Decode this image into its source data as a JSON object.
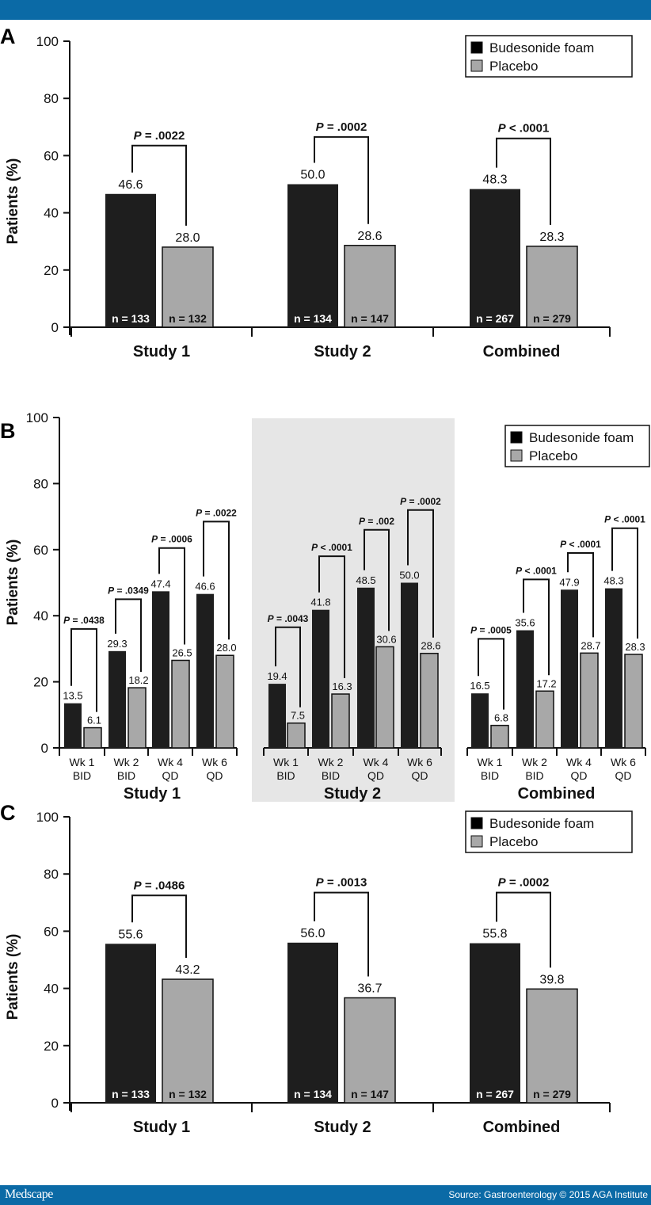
{
  "header": {},
  "footer": {
    "brand": "Medscape",
    "source": "Source: Gastroenterology © 2015 AGA Institute"
  },
  "colors": {
    "budesonide": "#1e1e1e",
    "placebo": "#a8a8a8",
    "highlight_band": "#e6e6e6",
    "bar_brand": "#0b6aa6"
  },
  "chart_data": [
    {
      "panel": "A",
      "type": "bar",
      "ylabel": "Patients (%)",
      "ylim": [
        0,
        100
      ],
      "yticks": [
        0,
        20,
        40,
        60,
        80,
        100
      ],
      "legend": {
        "position": "top-right",
        "entries": [
          "Budesonide foam",
          "Placebo"
        ]
      },
      "categories": [
        "Study 1",
        "Study 2",
        "Combined"
      ],
      "series": [
        {
          "name": "Budesonide foam",
          "values": [
            46.6,
            50.0,
            48.3
          ],
          "labels": [
            "46.6",
            "50.0",
            "48.3"
          ],
          "n": [
            "n = 133",
            "n = 134",
            "n = 267"
          ]
        },
        {
          "name": "Placebo",
          "values": [
            28.0,
            28.6,
            28.3
          ],
          "labels": [
            "28.0",
            "28.6",
            "28.3"
          ],
          "n": [
            "n = 132",
            "n = 147",
            "n = 279"
          ]
        }
      ],
      "pvalues": [
        {
          "prefix": "P",
          "text": " = .0022",
          "bracket_top": 63.5
        },
        {
          "prefix": "P",
          "text": " = .0002",
          "bracket_top": 66.5
        },
        {
          "prefix": "P",
          "text": " < .0001",
          "bracket_top": 66.0
        }
      ]
    },
    {
      "panel": "B",
      "type": "bar",
      "ylabel": "Patients (%)",
      "ylim": [
        0,
        100
      ],
      "yticks": [
        0,
        20,
        40,
        60,
        80,
        100
      ],
      "legend": {
        "position": "top-right",
        "entries": [
          "Budesonide foam",
          "Placebo"
        ]
      },
      "groups": [
        {
          "name": "Study 1",
          "highlighted": false,
          "categories": [
            [
              "Wk 1",
              "BID"
            ],
            [
              "Wk 2",
              "BID"
            ],
            [
              "Wk 4",
              "QD"
            ],
            [
              "Wk 6",
              "QD"
            ]
          ],
          "budesonide": [
            13.5,
            29.3,
            47.4,
            46.6
          ],
          "budesonide_labels": [
            "13.5",
            "29.3",
            "47.4",
            "46.6"
          ],
          "placebo": [
            6.1,
            18.2,
            26.5,
            28.0
          ],
          "placebo_labels": [
            "6.1",
            "18.2",
            "26.5",
            "28.0"
          ],
          "pvalues": [
            {
              "prefix": "P",
              "text": " = .0438",
              "bracket_top": 36.0
            },
            {
              "prefix": "P",
              "text": " = .0349",
              "bracket_top": 45.0
            },
            {
              "prefix": "P",
              "text": " = .0006",
              "bracket_top": 60.5
            },
            {
              "prefix": "P",
              "text": " = .0022",
              "bracket_top": 68.5
            }
          ]
        },
        {
          "name": "Study 2",
          "highlighted": true,
          "categories": [
            [
              "Wk 1",
              "BID"
            ],
            [
              "Wk 2",
              "BID"
            ],
            [
              "Wk 4",
              "QD"
            ],
            [
              "Wk 6",
              "QD"
            ]
          ],
          "budesonide": [
            19.4,
            41.8,
            48.5,
            50.0
          ],
          "budesonide_labels": [
            "19.4",
            "41.8",
            "48.5",
            "50.0"
          ],
          "placebo": [
            7.5,
            16.3,
            30.6,
            28.6
          ],
          "placebo_labels": [
            "7.5",
            "16.3",
            "30.6",
            "28.6"
          ],
          "pvalues": [
            {
              "prefix": "P",
              "text": " = .0043",
              "bracket_top": 36.5
            },
            {
              "prefix": "P",
              "text": " < .0001",
              "bracket_top": 58.0
            },
            {
              "prefix": "P",
              "text": " = .002",
              "bracket_top": 66.0
            },
            {
              "prefix": "P",
              "text": " = .0002",
              "bracket_top": 72.0
            }
          ]
        },
        {
          "name": "Combined",
          "highlighted": false,
          "categories": [
            [
              "Wk 1",
              "BID"
            ],
            [
              "Wk 2",
              "BID"
            ],
            [
              "Wk 4",
              "QD"
            ],
            [
              "Wk 6",
              "QD"
            ]
          ],
          "budesonide": [
            16.5,
            35.6,
            47.9,
            48.3
          ],
          "budesonide_labels": [
            "16.5",
            "35.6",
            "47.9",
            "48.3"
          ],
          "placebo": [
            6.8,
            17.2,
            28.7,
            28.3
          ],
          "placebo_labels": [
            "6.8",
            "17.2",
            "28.7",
            "28.3"
          ],
          "pvalues": [
            {
              "prefix": "P",
              "text": " = .0005",
              "bracket_top": 33.0
            },
            {
              "prefix": "P",
              "text": " < .0001",
              "bracket_top": 51.0
            },
            {
              "prefix": "P",
              "text": " < .0001",
              "bracket_top": 59.0
            },
            {
              "prefix": "P",
              "text": " < .0001",
              "bracket_top": 66.5
            }
          ]
        }
      ]
    },
    {
      "panel": "C",
      "type": "bar",
      "ylabel": "Patients (%)",
      "ylim": [
        0,
        100
      ],
      "yticks": [
        0,
        20,
        40,
        60,
        80,
        100
      ],
      "legend": {
        "position": "top-right",
        "entries": [
          "Budesonide foam",
          "Placebo"
        ]
      },
      "categories": [
        "Study 1",
        "Study 2",
        "Combined"
      ],
      "series": [
        {
          "name": "Budesonide foam",
          "values": [
            55.6,
            56.0,
            55.8
          ],
          "labels": [
            "55.6",
            "56.0",
            "55.8"
          ],
          "n": [
            "n = 133",
            "n = 134",
            "n = 267"
          ]
        },
        {
          "name": "Placebo",
          "values": [
            43.2,
            36.7,
            39.8
          ],
          "labels": [
            "43.2",
            "36.7",
            "39.8"
          ],
          "n": [
            "n = 132",
            "n = 147",
            "n = 279"
          ]
        }
      ],
      "pvalues": [
        {
          "prefix": "P",
          "text": " = .0486",
          "bracket_top": 72.5
        },
        {
          "prefix": "P",
          "text": " = .0013",
          "bracket_top": 73.5
        },
        {
          "prefix": "P",
          "text": " = .0002",
          "bracket_top": 73.5
        }
      ]
    }
  ]
}
